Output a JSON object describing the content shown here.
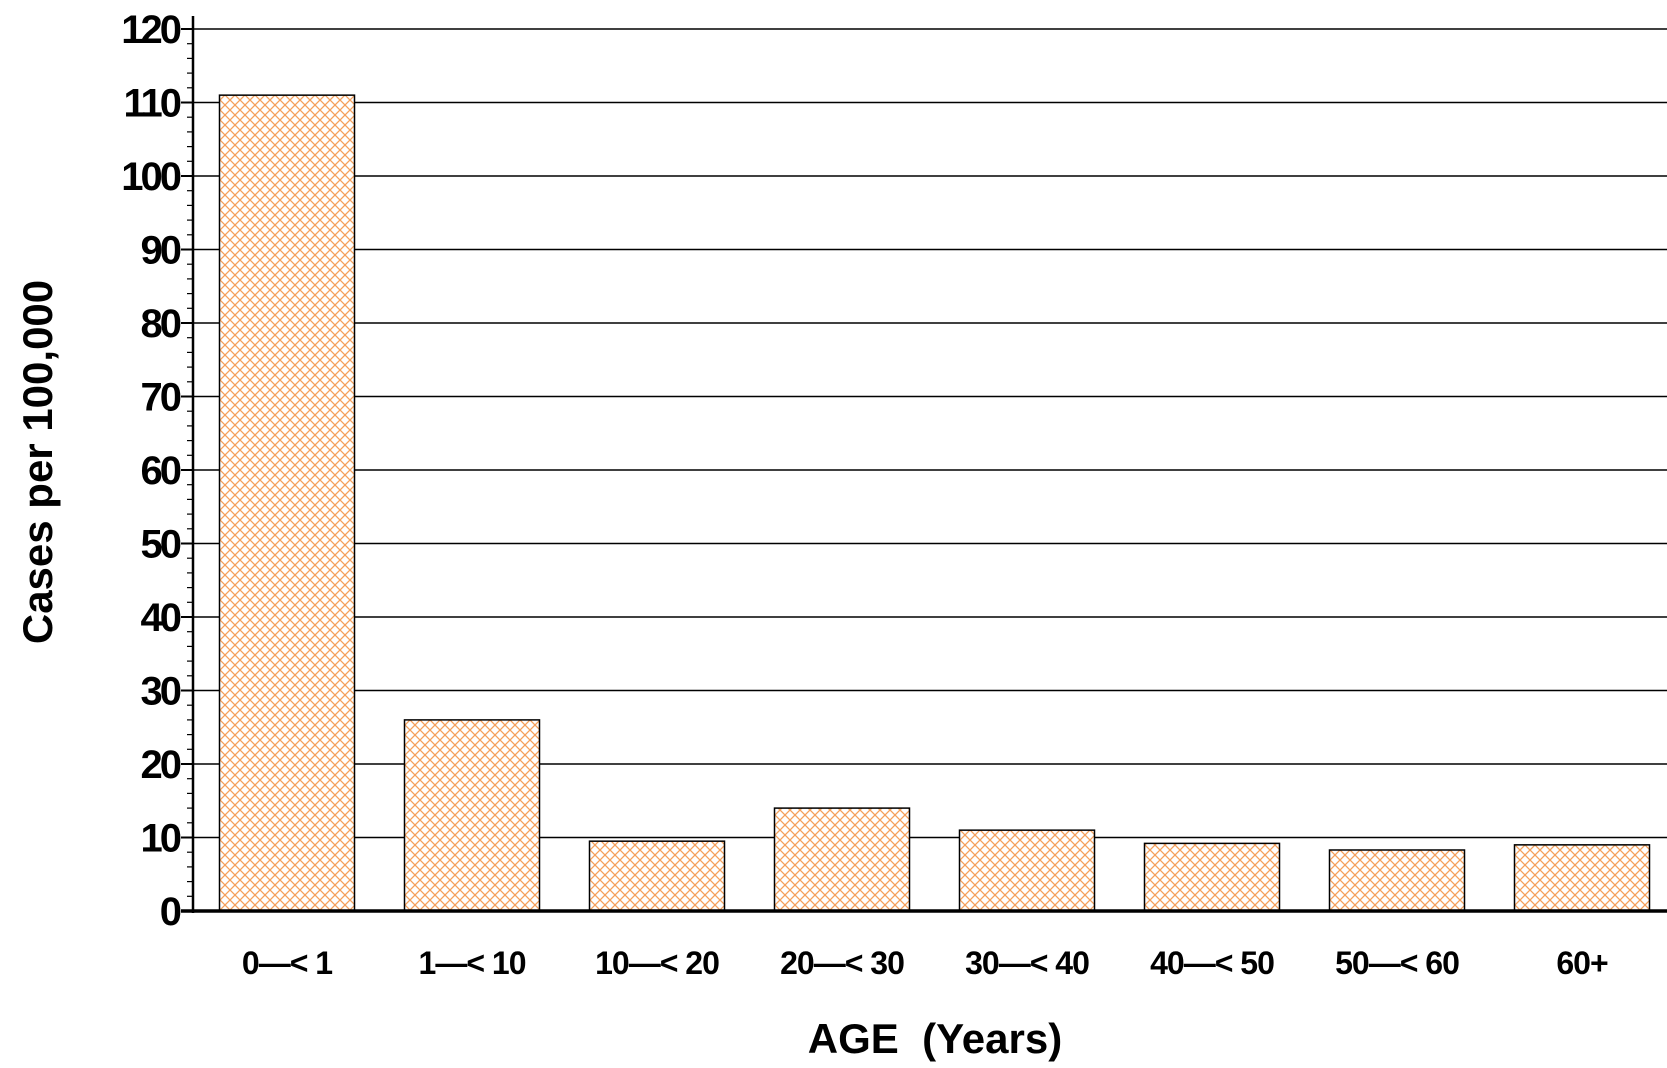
{
  "chart_data": {
    "type": "bar",
    "title": "",
    "xlabel": "AGE  (Years)",
    "ylabel": "Cases  per  100,000",
    "categories": [
      "0—< 1",
      "1—< 10",
      "10—< 20",
      "20—< 30",
      "30—< 40",
      "40—< 50",
      "50—< 60",
      "60+"
    ],
    "values": [
      111,
      26,
      9.5,
      14,
      11,
      9.2,
      8.3,
      9
    ],
    "ylim": [
      0,
      120
    ],
    "yticks": [
      "0",
      "10",
      "20",
      "30",
      "40",
      "50",
      "60",
      "70",
      "80",
      "90",
      "100",
      "110",
      "120"
    ],
    "grid": true,
    "bar_fill": "crosshatch",
    "colors": {
      "bar_hatch": "#f5a05a",
      "bar_edge": "#000000",
      "grid": "#000000"
    }
  }
}
